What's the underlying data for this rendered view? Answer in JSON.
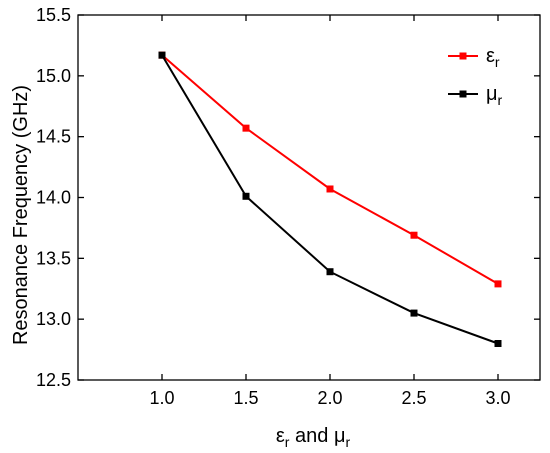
{
  "chart_data": {
    "type": "line",
    "x": [
      1.0,
      1.5,
      2.0,
      2.5,
      3.0
    ],
    "xticks": [
      "1.0",
      "1.5",
      "2.0",
      "2.5",
      "3.0"
    ],
    "yticks": [
      "12.5",
      "13.0",
      "13.5",
      "14.0",
      "14.5",
      "15.0",
      "15.5"
    ],
    "xlim": [
      0.5,
      3.25
    ],
    "ylim": [
      12.5,
      15.5
    ],
    "ylabel": "Resonance Frequency (GHz)",
    "xlabel": {
      "sym1": "ε",
      "sub1": "r",
      "mid": " and ",
      "sym2": "μ",
      "sub2": "r"
    },
    "legend_position": "top-right",
    "grid": false,
    "series": [
      {
        "name": "εr",
        "symbol": "ε",
        "subscript": "r",
        "color": "#ff0000",
        "marker": "square",
        "values": [
          15.17,
          14.57,
          14.07,
          13.69,
          13.29
        ]
      },
      {
        "name": "μr",
        "symbol": "μ",
        "subscript": "r",
        "color": "#000000",
        "marker": "square",
        "values": [
          15.17,
          14.01,
          13.39,
          13.05,
          12.8
        ]
      }
    ]
  }
}
